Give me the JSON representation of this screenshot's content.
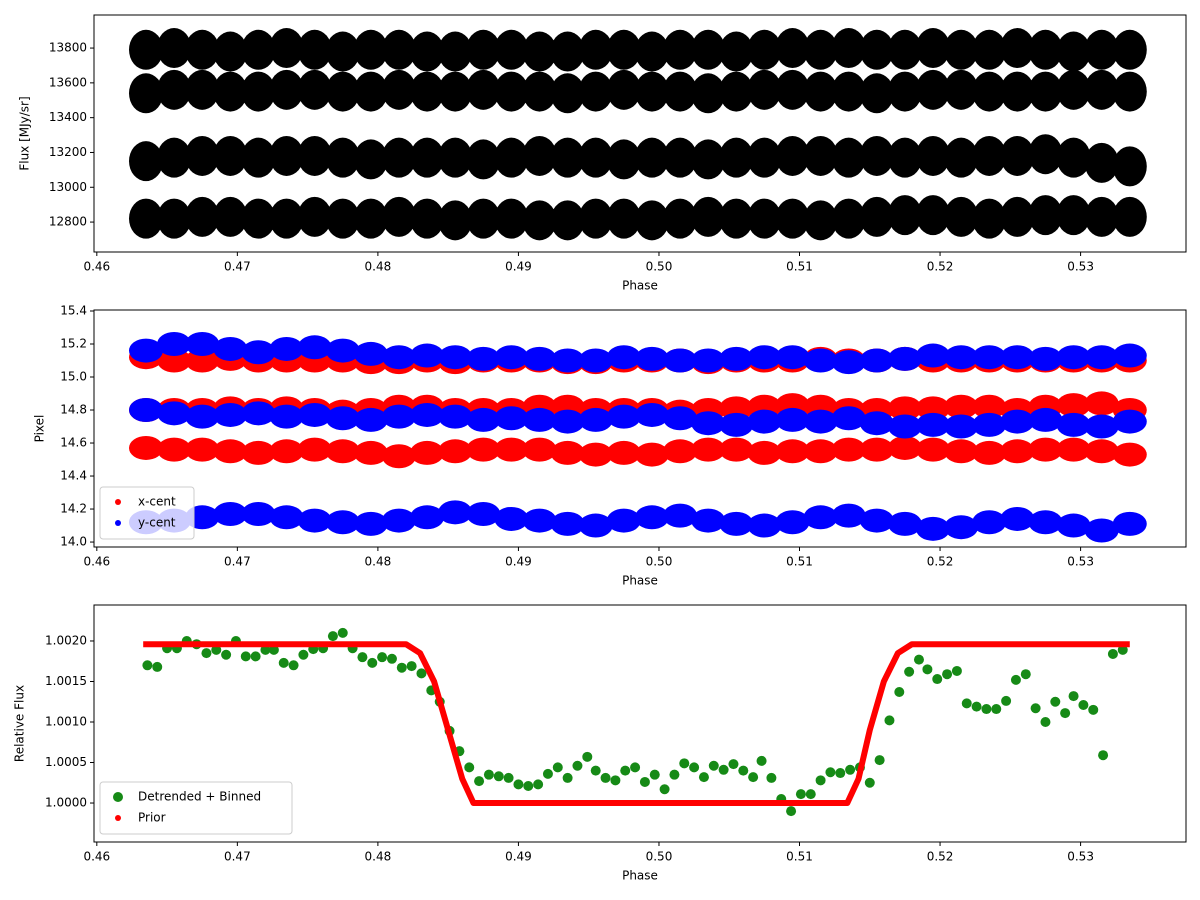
{
  "chart_data": [
    {
      "type": "scatter",
      "xlabel": "Phase",
      "ylabel": "Flux [MJy/sr]",
      "xlim": [
        0.4598,
        0.5375
      ],
      "xticks": [
        0.46,
        0.47,
        0.48,
        0.49,
        {
          "value": 0.5,
          "label": "0.50"
        },
        0.51,
        0.52,
        0.53
      ],
      "ylim": [
        12628,
        13990
      ],
      "yticks": [
        12800,
        13000,
        13200,
        13400,
        13600,
        13800
      ],
      "x": [
        0.4635,
        0.4655,
        0.4675,
        0.4695,
        0.4715,
        0.4735,
        0.4755,
        0.4775,
        0.4795,
        0.4815,
        0.4835,
        0.4855,
        0.4875,
        0.4895,
        0.4915,
        0.4935,
        0.4955,
        0.4975,
        0.4995,
        0.5015,
        0.5035,
        0.5055,
        0.5075,
        0.5095,
        0.5115,
        0.5135,
        0.5155,
        0.5175,
        0.5195,
        0.5215,
        0.5235,
        0.5255,
        0.5275,
        0.5295,
        0.5315,
        0.5335
      ],
      "series": [
        {
          "color": "#000000",
          "bands": [
            [
              13790,
              13800,
              13790,
              13780,
              13790,
              13800,
              13790,
              13780,
              13790,
              13790,
              13780,
              13780,
              13790,
              13790,
              13780,
              13780,
              13790,
              13790,
              13780,
              13790,
              13790,
              13780,
              13790,
              13800,
              13790,
              13800,
              13790,
              13790,
              13800,
              13790,
              13790,
              13800,
              13790,
              13780,
              13790,
              13790
            ],
            [
              13540,
              13560,
              13560,
              13550,
              13550,
              13560,
              13560,
              13550,
              13550,
              13560,
              13550,
              13550,
              13560,
              13550,
              13550,
              13540,
              13550,
              13560,
              13550,
              13550,
              13540,
              13550,
              13560,
              13560,
              13550,
              13550,
              13540,
              13550,
              13560,
              13560,
              13550,
              13550,
              13550,
              13560,
              13560,
              13550
            ],
            [
              13150,
              13170,
              13180,
              13180,
              13170,
              13180,
              13180,
              13170,
              13160,
              13170,
              13170,
              13170,
              13160,
              13170,
              13180,
              13170,
              13170,
              13160,
              13170,
              13170,
              13160,
              13170,
              13170,
              13180,
              13180,
              13170,
              13180,
              13170,
              13180,
              13170,
              13180,
              13180,
              13190,
              13170,
              13140,
              13120
            ],
            [
              12820,
              12820,
              12830,
              12830,
              12820,
              12820,
              12830,
              12820,
              12820,
              12830,
              12820,
              12810,
              12820,
              12820,
              12810,
              12810,
              12820,
              12820,
              12810,
              12820,
              12830,
              12820,
              12820,
              12820,
              12810,
              12820,
              12830,
              12840,
              12840,
              12830,
              12820,
              12830,
              12840,
              12840,
              12830,
              12830
            ]
          ]
        }
      ]
    },
    {
      "type": "scatter",
      "xlabel": "Phase",
      "ylabel": "Pixel",
      "legend": "lower left",
      "xlim": [
        0.4598,
        0.5375
      ],
      "xticks": [
        0.46,
        0.47,
        0.48,
        0.49,
        {
          "value": 0.5,
          "label": "0.50"
        },
        0.51,
        0.52,
        0.53
      ],
      "ylim": [
        13.97,
        15.406
      ],
      "yticks": [
        {
          "value": 14,
          "label": "14.0"
        },
        14.2,
        14.4,
        14.6,
        14.8,
        {
          "value": 15,
          "label": "15.0"
        },
        15.2,
        15.4
      ],
      "x": [
        0.4635,
        0.4655,
        0.4675,
        0.4695,
        0.4715,
        0.4735,
        0.4755,
        0.4775,
        0.4795,
        0.4815,
        0.4835,
        0.4855,
        0.4875,
        0.4895,
        0.4915,
        0.4935,
        0.4955,
        0.4975,
        0.4995,
        0.5015,
        0.5035,
        0.5055,
        0.5075,
        0.5095,
        0.5115,
        0.5135,
        0.5155,
        0.5175,
        0.5195,
        0.5215,
        0.5235,
        0.5255,
        0.5275,
        0.5295,
        0.5315,
        0.5335
      ],
      "series": [
        {
          "name": "x-cent",
          "color": "#ff0000",
          "bands": [
            [
              15.12,
              15.1,
              15.1,
              15.11,
              15.1,
              15.1,
              15.1,
              15.1,
              15.09,
              15.09,
              15.1,
              15.09,
              15.1,
              15.1,
              15.1,
              15.09,
              15.09,
              15.1,
              15.1,
              15.1,
              15.09,
              15.1,
              15.1,
              15.1,
              15.11,
              15.1,
              15.1,
              15.11,
              15.1,
              15.1,
              15.1,
              15.1,
              15.1,
              15.1,
              15.1,
              15.1
            ],
            [
              14.8,
              14.8,
              14.8,
              14.81,
              14.8,
              14.81,
              14.8,
              14.79,
              14.8,
              14.82,
              14.82,
              14.8,
              14.8,
              14.8,
              14.82,
              14.82,
              14.8,
              14.8,
              14.8,
              14.79,
              14.8,
              14.81,
              14.82,
              14.83,
              14.82,
              14.8,
              14.8,
              14.81,
              14.81,
              14.82,
              14.82,
              14.8,
              14.82,
              14.83,
              14.84,
              14.8
            ],
            [
              14.57,
              14.56,
              14.56,
              14.55,
              14.54,
              14.55,
              14.56,
              14.55,
              14.54,
              14.52,
              14.54,
              14.55,
              14.56,
              14.56,
              14.56,
              14.54,
              14.53,
              14.54,
              14.53,
              14.55,
              14.56,
              14.56,
              14.54,
              14.55,
              14.55,
              14.56,
              14.56,
              14.57,
              14.56,
              14.55,
              14.54,
              14.55,
              14.56,
              14.56,
              14.55,
              14.53
            ]
          ]
        },
        {
          "name": "y-cent",
          "color": "#0000ff",
          "bands": [
            [
              15.16,
              15.2,
              15.2,
              15.17,
              15.15,
              15.17,
              15.18,
              15.16,
              15.14,
              15.12,
              15.13,
              15.12,
              15.11,
              15.12,
              15.11,
              15.1,
              15.1,
              15.12,
              15.11,
              15.1,
              15.1,
              15.11,
              15.12,
              15.12,
              15.1,
              15.09,
              15.1,
              15.11,
              15.13,
              15.12,
              15.12,
              15.12,
              15.11,
              15.12,
              15.12,
              15.13
            ],
            [
              14.8,
              14.78,
              14.76,
              14.77,
              14.78,
              14.76,
              14.77,
              14.75,
              14.74,
              14.76,
              14.77,
              14.76,
              14.74,
              14.75,
              14.74,
              14.73,
              14.74,
              14.76,
              14.77,
              14.75,
              14.72,
              14.71,
              14.73,
              14.74,
              14.73,
              14.75,
              14.72,
              14.7,
              14.71,
              14.7,
              14.71,
              14.73,
              14.74,
              14.71,
              14.7,
              14.73
            ],
            [
              14.12,
              14.13,
              14.15,
              14.17,
              14.17,
              14.15,
              14.13,
              14.12,
              14.11,
              14.13,
              14.15,
              14.18,
              14.17,
              14.14,
              14.13,
              14.11,
              14.1,
              14.13,
              14.15,
              14.16,
              14.13,
              14.11,
              14.1,
              14.12,
              14.15,
              14.16,
              14.13,
              14.11,
              14.08,
              14.09,
              14.12,
              14.14,
              14.12,
              14.1,
              14.07,
              14.11
            ]
          ]
        }
      ]
    },
    {
      "type": "scatter",
      "xlabel": "Phase",
      "ylabel": "Relative Flux",
      "legend": "lower left",
      "xlim": [
        0.4598,
        0.5375
      ],
      "xticks": [
        0.46,
        0.47,
        0.48,
        0.49,
        {
          "value": 0.5,
          "label": "0.50"
        },
        0.51,
        0.52,
        0.53
      ],
      "ylim": [
        0.999519,
        1.002444
      ],
      "yticks": [
        {
          "value": 1.0,
          "label": "1.0000"
        },
        {
          "value": 1.0005,
          "label": "1.0005"
        },
        {
          "value": 1.001,
          "label": "1.0010"
        },
        {
          "value": 1.0015,
          "label": "1.0015"
        },
        {
          "value": 1.002,
          "label": "1.0020"
        }
      ],
      "series": [
        {
          "name": "Detrended + Binned",
          "color": "#168a16",
          "x": [
            0.4636,
            0.4643,
            0.465,
            0.4657,
            0.4664,
            0.4671,
            0.4678,
            0.4685,
            0.4692,
            0.4699,
            0.4706,
            0.4713,
            0.472,
            0.4726,
            0.4733,
            0.474,
            0.4747,
            0.4754,
            0.4761,
            0.4768,
            0.4775,
            0.4782,
            0.4789,
            0.4796,
            0.4803,
            0.481,
            0.4817,
            0.4824,
            0.4831,
            0.4838,
            0.4844,
            0.4851,
            0.4858,
            0.4865,
            0.4872,
            0.4879,
            0.4886,
            0.4893,
            0.49,
            0.4907,
            0.4914,
            0.4921,
            0.4928,
            0.4935,
            0.4942,
            0.4949,
            0.4955,
            0.4962,
            0.4969,
            0.4976,
            0.4983,
            0.499,
            0.4997,
            0.5004,
            0.5011,
            0.5018,
            0.5025,
            0.5032,
            0.5039,
            0.5046,
            0.5053,
            0.506,
            0.5067,
            0.5073,
            0.508,
            0.5087,
            0.5094,
            0.5101,
            0.5108,
            0.5115,
            0.5122,
            0.5129,
            0.5136,
            0.5143,
            0.515,
            0.5157,
            0.5164,
            0.5171,
            0.5178,
            0.5185,
            0.5191,
            0.5198,
            0.5205,
            0.5212,
            0.5219,
            0.5226,
            0.5233,
            0.524,
            0.5247,
            0.5254,
            0.5261,
            0.5268,
            0.5275,
            0.5282,
            0.5289,
            0.5295,
            0.5302,
            0.5309,
            0.5316,
            0.5323,
            0.533
          ],
          "values": [
            1.0017,
            1.00168,
            1.00191,
            1.00191,
            1.002,
            1.00196,
            1.00185,
            1.00189,
            1.00183,
            1.002,
            1.00181,
            1.00181,
            1.00189,
            1.00189,
            1.00173,
            1.0017,
            1.00183,
            1.0019,
            1.00191,
            1.00206,
            1.0021,
            1.00191,
            1.0018,
            1.00173,
            1.0018,
            1.00178,
            1.00167,
            1.00169,
            1.0016,
            1.00139,
            1.00125,
            1.00089,
            1.00064,
            1.00044,
            1.00027,
            1.00035,
            1.00033,
            1.00031,
            1.00023,
            1.00021,
            1.00023,
            1.00036,
            1.00044,
            1.00031,
            1.00046,
            1.00057,
            1.0004,
            1.00031,
            1.00028,
            1.0004,
            1.00044,
            1.00026,
            1.00035,
            1.00017,
            1.00035,
            1.00049,
            1.00044,
            1.00032,
            1.00046,
            1.00041,
            1.00048,
            1.0004,
            1.00032,
            1.00052,
            1.00031,
            1.00005,
            0.9999,
            1.00011,
            1.00011,
            1.00028,
            1.00038,
            1.00037,
            1.00041,
            1.00044,
            1.00025,
            1.00053,
            1.00102,
            1.00137,
            1.00162,
            1.00177,
            1.00165,
            1.00153,
            1.00159,
            1.00163,
            1.00123,
            1.00119,
            1.00116,
            1.00116,
            1.00126,
            1.00152,
            1.00159,
            1.00117,
            1.001,
            1.00125,
            1.00111,
            1.00132,
            1.00121,
            1.00115,
            1.00059,
            1.00184,
            1.00189
          ]
        },
        {
          "name": "Prior",
          "color": "#ff0000",
          "type": "line",
          "x": [
            0.4633,
            0.482,
            0.483,
            0.484,
            0.485,
            0.486,
            0.4868,
            0.5134,
            0.5142,
            0.515,
            0.516,
            0.517,
            0.518,
            0.5335
          ],
          "values": [
            1.00196,
            1.00196,
            1.00185,
            1.0015,
            1.0009,
            1.0003,
            1.0,
            1.0,
            1.0003,
            1.0009,
            1.0015,
            1.00185,
            1.00196,
            1.00196
          ]
        }
      ]
    }
  ]
}
